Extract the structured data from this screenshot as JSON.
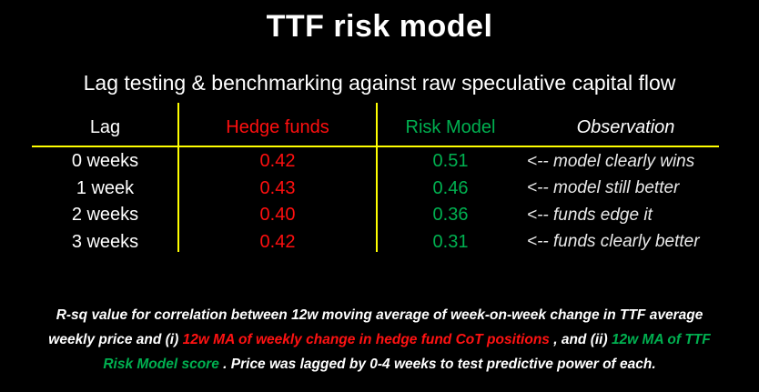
{
  "colors": {
    "background": "#000000",
    "text": "#ffffff",
    "negative_red": "#ff0f0f",
    "positive_green": "#00b050",
    "rule_yellow": "#ffff00"
  },
  "title": "TTF risk model",
  "subtitle": "Lag testing & benchmarking against raw speculative capital flow",
  "table": {
    "headers": {
      "lag": "Lag",
      "hedge_funds": "Hedge funds",
      "risk_model": "Risk Model",
      "observation": "Observation"
    },
    "rows": [
      {
        "lag": "0 weeks",
        "hedge_funds": "0.42",
        "risk_model": "0.51",
        "observation": "<-- model clearly wins"
      },
      {
        "lag": "1 week",
        "hedge_funds": "0.43",
        "risk_model": "0.46",
        "observation": "<-- model still better"
      },
      {
        "lag": "2 weeks",
        "hedge_funds": "0.40",
        "risk_model": "0.36",
        "observation": "<-- funds edge it"
      },
      {
        "lag": "3 weeks",
        "hedge_funds": "0.42",
        "risk_model": "0.31",
        "observation": "<-- funds clearly better"
      }
    ]
  },
  "footnote": {
    "line1": "R-sq value for correlation between 12w moving average of week-on-week change in TTF average",
    "line2_white1": "weekly price and (i) ",
    "line2_red": "12w MA of weekly change in hedge fund CoT positions",
    "line2_white2": " , and (ii) ",
    "line2_green": "12w MA of TTF",
    "line3_green": "Risk Model score",
    "line3_white": " . Price was lagged by 0-4 weeks to test predictive power of each."
  }
}
